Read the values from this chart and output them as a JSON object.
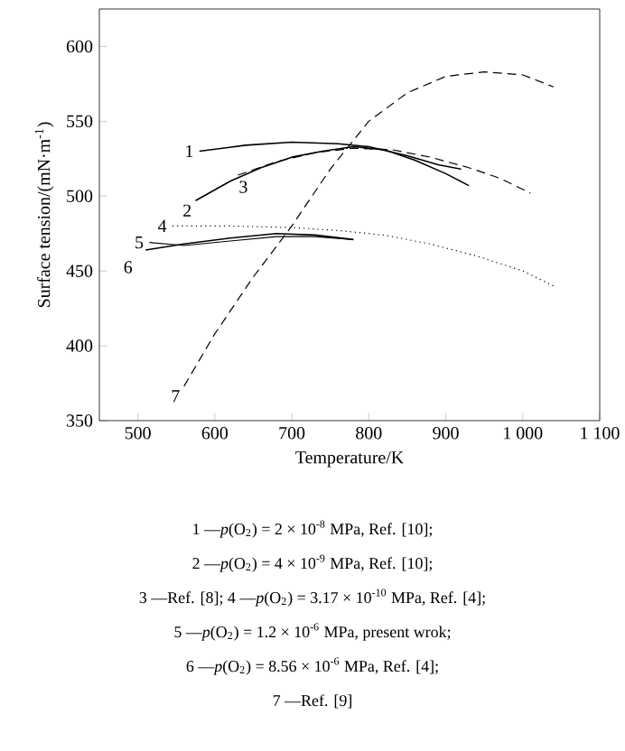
{
  "chart_data": {
    "type": "line",
    "xlabel": "Temperature/K",
    "ylabel": "Surface tension/(mN·m$^{-1}$)",
    "xlim": [
      450,
      1100
    ],
    "ylim": [
      350,
      625
    ],
    "xticks": [
      500,
      600,
      700,
      800,
      900,
      {
        "value": 1000,
        "label": "1 000"
      },
      {
        "value": 1100,
        "label": "1 100"
      }
    ],
    "yticks": [
      350,
      400,
      450,
      500,
      550,
      600
    ],
    "grid": false,
    "marker": "none",
    "series": [
      {
        "name": "1",
        "color": "#000000",
        "line_style": "solid",
        "x": [
          580,
          640,
          700,
          760,
          800,
          850,
          890,
          920
        ],
        "values": [
          530,
          534,
          536,
          535,
          533,
          527,
          521,
          518
        ]
      },
      {
        "name": "2",
        "color": "#000000",
        "line_style": "solid",
        "x": [
          575,
          620,
          660,
          700,
          740,
          780,
          820,
          860,
          900,
          930
        ],
        "values": [
          497,
          510,
          519,
          526,
          530,
          533,
          531,
          524,
          515,
          507
        ]
      },
      {
        "name": "3",
        "color": "#000000",
        "line_style": "dashed",
        "x": [
          630,
          680,
          730,
          780,
          830,
          880,
          930,
          970,
          1010
        ],
        "values": [
          514,
          523,
          529,
          532,
          531,
          526,
          519,
          512,
          502
        ]
      },
      {
        "name": "4",
        "color": "#000000",
        "line_style": "dotted",
        "x": [
          545,
          620,
          700,
          760,
          820,
          880,
          940,
          1000,
          1040
        ],
        "values": [
          480,
          480,
          479,
          477,
          474,
          468,
          460,
          450,
          440
        ]
      },
      {
        "name": "5",
        "color": "#000000",
        "line_style": "solid",
        "x": [
          515,
          560,
          620,
          680,
          730,
          780
        ],
        "values": [
          469,
          467,
          470,
          473,
          473,
          471
        ]
      },
      {
        "name": "6",
        "color": "#000000",
        "line_style": "solid",
        "x": [
          510,
          560,
          620,
          680,
          730,
          780
        ],
        "values": [
          464,
          468,
          472,
          475,
          474,
          471
        ]
      },
      {
        "name": "7",
        "color": "#000000",
        "line_style": "dashed",
        "x": [
          560,
          600,
          650,
          700,
          750,
          800,
          850,
          900,
          950,
          1000,
          1040
        ],
        "values": [
          373,
          408,
          446,
          480,
          518,
          550,
          569,
          580,
          583,
          581,
          573
        ]
      }
    ],
    "annotations": [
      "1 —*p*(O$_{2}$) = 2 × 10$^{-8}$ MPa, Ref. [10];",
      "2 —*p*(O$_{2}$) = 4 × 10$^{-9}$ MPa, Ref. [10];",
      "3 —Ref. [8]; 4 —*p*(O$_{2}$) = 3.17 × 10$^{-10}$ MPa, Ref. [4];",
      "5 —*p*(O$_{2}$) = 1.2 × 10$^{-6}$ MPa, present wrok;",
      "6 —*p*(O$_{2}$) = 8.56 × 10$^{-6}$ MPa, Ref. [4];",
      "7 —Ref. [9]"
    ]
  }
}
